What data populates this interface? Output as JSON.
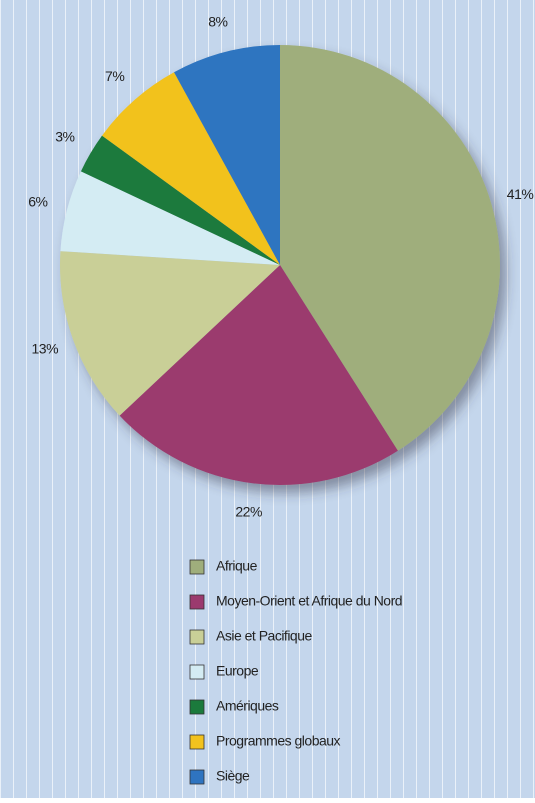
{
  "chart_data": {
    "type": "pie",
    "categories": [
      "Afrique",
      "Moyen-Orient et Afrique du Nord",
      "Asie et Pacifique",
      "Europe",
      "Amériques",
      "Programmes globaux",
      "Siège"
    ],
    "values": [
      41,
      22,
      13,
      6,
      3,
      7,
      8
    ],
    "value_labels": [
      "41%",
      "22%",
      "13%",
      "6%",
      "3%",
      "7%",
      "8%"
    ],
    "colors": [
      "#9fae7c",
      "#9b3a6e",
      "#c9cf97",
      "#d4ecf3",
      "#1b7a3c",
      "#f2c21e",
      "#2f74c0"
    ],
    "start_angle": 0,
    "direction": "clockwise",
    "legend": "bottom"
  }
}
